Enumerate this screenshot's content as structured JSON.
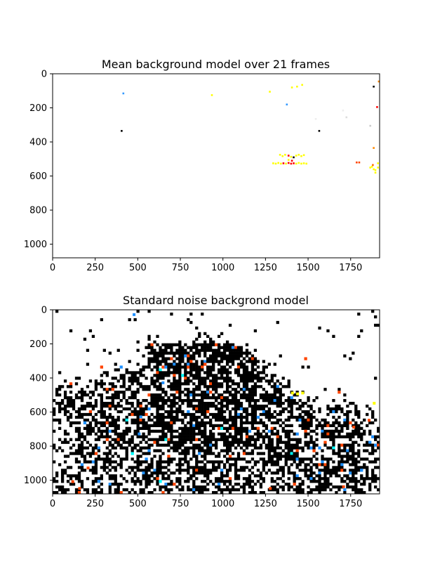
{
  "chart_data": [
    {
      "type": "heatmap",
      "title": "Mean background model over 21 frames",
      "image_size": [
        1920,
        1080
      ],
      "xlim": [
        0,
        1920
      ],
      "ylim": [
        1080,
        0
      ],
      "xticks": [
        0,
        250,
        500,
        750,
        1000,
        1250,
        1500,
        1750
      ],
      "yticks": [
        0,
        200,
        400,
        600,
        800,
        1000
      ],
      "colors": [
        "#ffffff",
        "#ffff00",
        "#ff0000",
        "#000000",
        "#3399ff"
      ]
    },
    {
      "type": "heatmap",
      "title": "Standard noise backgrond model",
      "image_size": [
        1920,
        1080
      ],
      "xlim": [
        0,
        1920
      ],
      "ylim": [
        1080,
        0
      ],
      "xticks": [
        0,
        250,
        500,
        750,
        1000,
        1250,
        1500,
        1750
      ],
      "yticks": [
        0,
        200,
        400,
        600,
        800,
        1000
      ],
      "colors": [
        "#ffffff",
        "#000000",
        "#ff4400",
        "#1e90ff",
        "#ffff00",
        "#00ffff"
      ]
    }
  ]
}
